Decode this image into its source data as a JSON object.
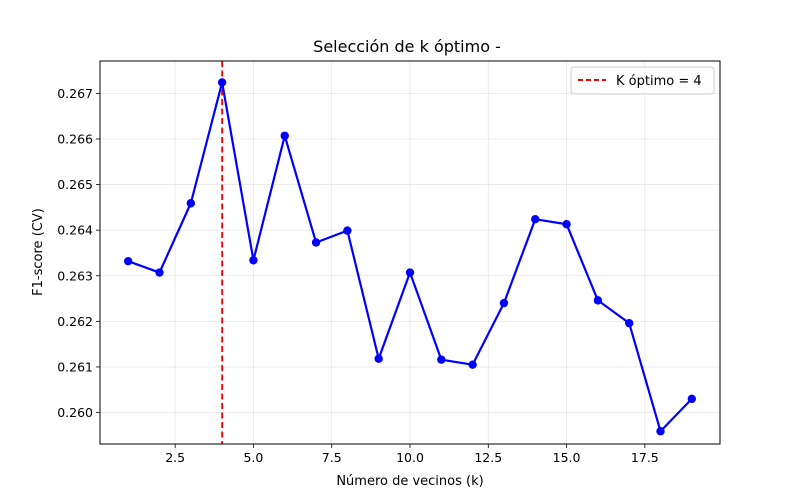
{
  "chart_data": {
    "type": "line",
    "title": "Selección de k óptimo -",
    "xlabel": "Número de vecinos (k)",
    "ylabel": "F1-score (CV)",
    "xlim": [
      0.1,
      19.9
    ],
    "ylim": [
      0.25931,
      0.26771
    ],
    "x_ticks": [
      2.5,
      5.0,
      7.5,
      10.0,
      12.5,
      15.0,
      17.5
    ],
    "x_tick_labels": [
      "2.5",
      "5.0",
      "7.5",
      "10.0",
      "12.5",
      "15.0",
      "17.5"
    ],
    "y_ticks": [
      0.26,
      0.261,
      0.262,
      0.263,
      0.264,
      0.265,
      0.266,
      0.267
    ],
    "y_tick_labels": [
      "0.260",
      "0.261",
      "0.262",
      "0.263",
      "0.264",
      "0.265",
      "0.266",
      "0.267"
    ],
    "grid": true,
    "legend_position": "upper right",
    "series": [
      {
        "color": "#0000ff",
        "marker": "circle",
        "x": [
          1,
          2,
          3,
          4,
          5,
          6,
          7,
          8,
          9,
          10,
          11,
          12,
          13,
          14,
          15,
          16,
          17,
          18,
          19
        ],
        "y": [
          0.26332,
          0.26307,
          0.26459,
          0.26724,
          0.26334,
          0.26607,
          0.26373,
          0.26399,
          0.26118,
          0.26307,
          0.26116,
          0.26105,
          0.2624,
          0.26424,
          0.26413,
          0.26246,
          0.26196,
          0.25959,
          0.2603
        ]
      }
    ],
    "vline": {
      "x": 4,
      "color": "#ff0000",
      "style": "dashed",
      "label": "K óptimo = 4"
    }
  }
}
